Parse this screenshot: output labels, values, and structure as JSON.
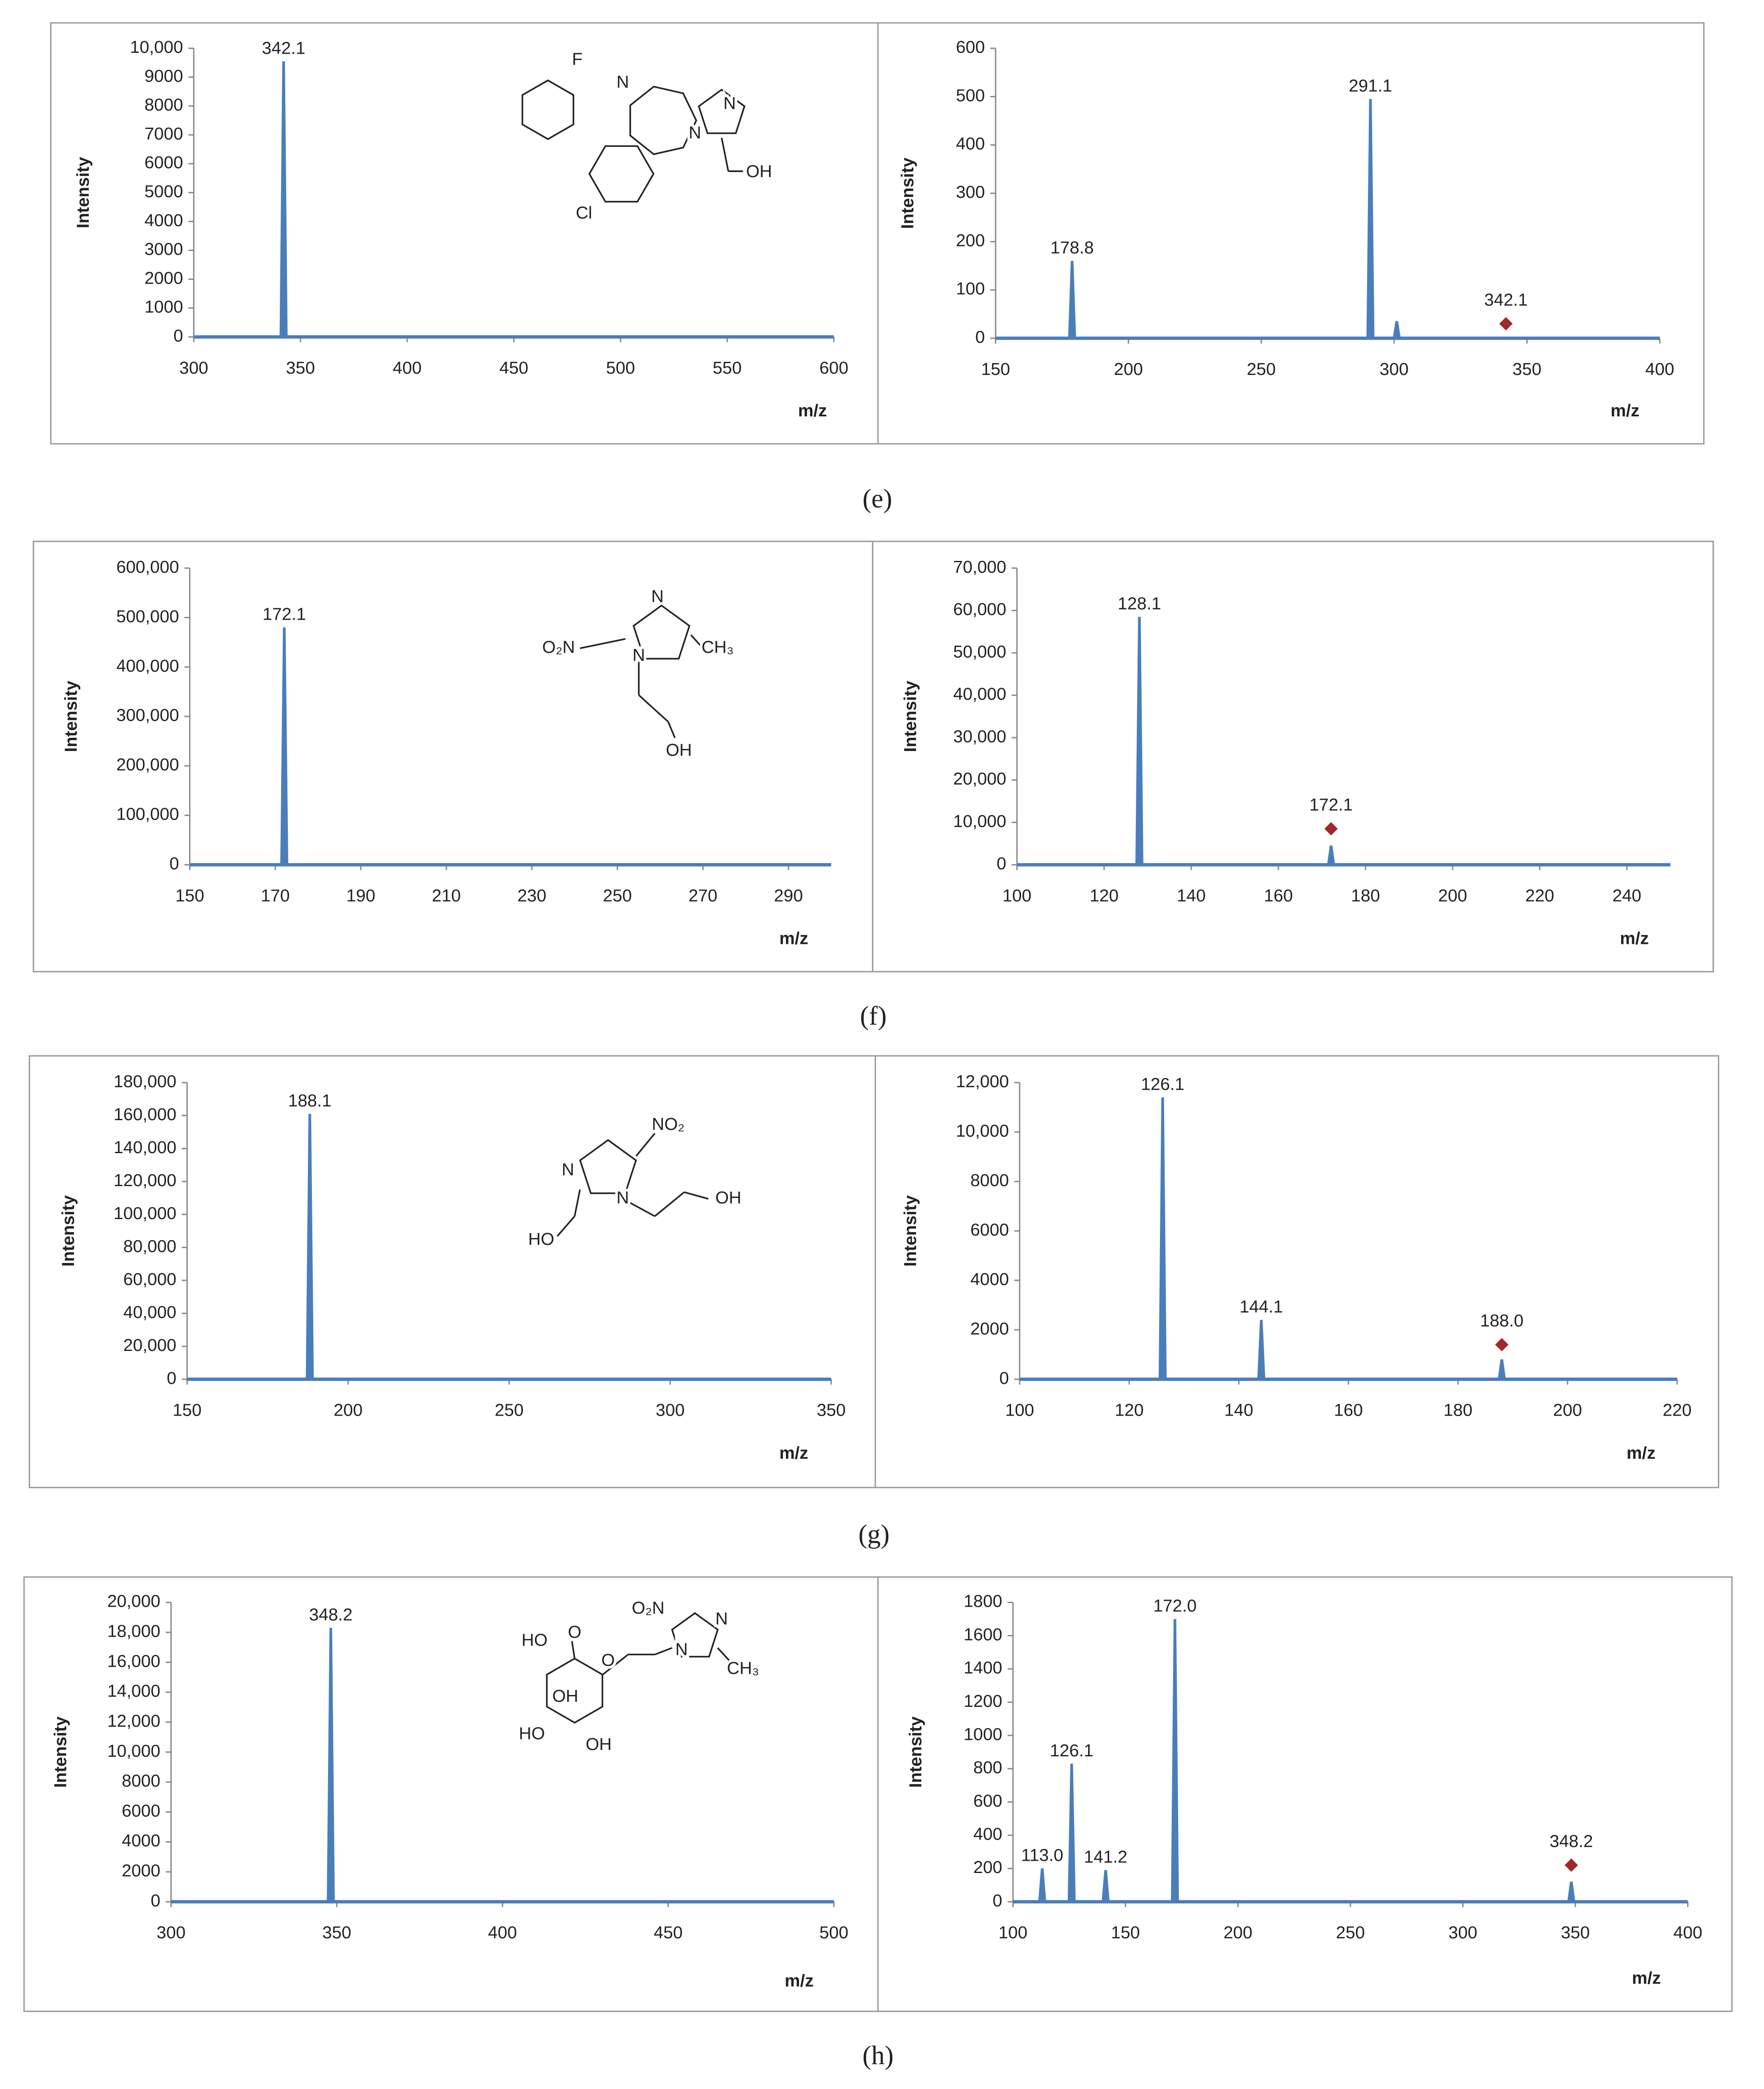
{
  "chart_data": [
    {
      "type": "spectrum",
      "x": [
        342.1
      ],
      "values": [
        9550
      ],
      "peak_labels": [
        "342.1"
      ],
      "color": "#4a7ebb",
      "xlim": [
        300,
        600
      ],
      "xticks": [
        300,
        350,
        400,
        450,
        500,
        550,
        600
      ],
      "ylim": [
        0,
        10000
      ],
      "yticks": [
        0,
        1000,
        2000,
        3000,
        4000,
        5000,
        6000,
        7000,
        8000,
        9000,
        {
          "value": 10000,
          "label": "10,000"
        }
      ],
      "xlabel": "m/z",
      "ylabel": "Intensity",
      "structure_labels": [
        "F",
        "N",
        "N",
        "N",
        "OH",
        "Cl"
      ]
    },
    {
      "type": "spectrum",
      "x": [
        178.8,
        291.1,
        301
      ],
      "values": [
        160,
        495,
        35
      ],
      "peak_labels": [
        "178.8",
        "291.1",
        null
      ],
      "color": "#4a7ebb",
      "markers": {
        "x": [
          342.1
        ],
        "values": [
          30
        ],
        "labels": [
          "342.1"
        ],
        "color": "#a0282d"
      },
      "xlim": [
        150,
        400
      ],
      "xticks": [
        150,
        200,
        250,
        300,
        350,
        400
      ],
      "ylim": [
        0,
        600
      ],
      "yticks": [
        0,
        100,
        200,
        300,
        400,
        500,
        600
      ],
      "xlabel": "m/z",
      "ylabel": "Intensity"
    },
    {
      "type": "spectrum",
      "x": [
        172.1
      ],
      "values": [
        480000
      ],
      "peak_labels": [
        "172.1"
      ],
      "color": "#4a7ebb",
      "xlim": [
        150,
        300
      ],
      "xticks": [
        150,
        170,
        190,
        210,
        230,
        250,
        270,
        290
      ],
      "ylim": [
        0,
        600000
      ],
      "yticks": [
        0,
        {
          "value": 100000,
          "label": "100,000"
        },
        {
          "value": 200000,
          "label": "200,000"
        },
        {
          "value": 300000,
          "label": "300,000"
        },
        {
          "value": 400000,
          "label": "400,000"
        },
        {
          "value": 500000,
          "label": "500,000"
        },
        {
          "value": 600000,
          "label": "600,000"
        }
      ],
      "xlabel": "m/z",
      "ylabel": "Intensity",
      "structure_labels": [
        "N",
        "O₂N",
        "N",
        "CH₃",
        "OH"
      ]
    },
    {
      "type": "spectrum",
      "x": [
        128.1,
        172.1
      ],
      "values": [
        58500,
        4500
      ],
      "peak_labels": [
        "128.1",
        null
      ],
      "color": "#4a7ebb",
      "markers": {
        "x": [
          172.1
        ],
        "values": [
          8500
        ],
        "labels": [
          "172.1"
        ],
        "color": "#a0282d"
      },
      "xlim": [
        100,
        250
      ],
      "xticks": [
        100,
        120,
        140,
        160,
        180,
        200,
        220,
        240
      ],
      "ylim": [
        0,
        70000
      ],
      "yticks": [
        0,
        {
          "value": 10000,
          "label": "10,000"
        },
        {
          "value": 20000,
          "label": "20,000"
        },
        {
          "value": 30000,
          "label": "30,000"
        },
        {
          "value": 40000,
          "label": "40,000"
        },
        {
          "value": 50000,
          "label": "50,000"
        },
        {
          "value": 60000,
          "label": "60,000"
        },
        {
          "value": 70000,
          "label": "70,000"
        }
      ],
      "xlabel": "m/z",
      "ylabel": "Intensity"
    },
    {
      "type": "spectrum",
      "x": [
        188.1
      ],
      "values": [
        161000
      ],
      "peak_labels": [
        "188.1"
      ],
      "color": "#4a7ebb",
      "xlim": [
        150,
        350
      ],
      "xticks": [
        150,
        200,
        250,
        300,
        350
      ],
      "ylim": [
        0,
        180000
      ],
      "yticks": [
        0,
        {
          "value": 20000,
          "label": "20,000"
        },
        {
          "value": 40000,
          "label": "40,000"
        },
        {
          "value": 60000,
          "label": "60,000"
        },
        {
          "value": 80000,
          "label": "80,000"
        },
        {
          "value": 100000,
          "label": "100,000"
        },
        {
          "value": 120000,
          "label": "120,000"
        },
        {
          "value": 140000,
          "label": "140,000"
        },
        {
          "value": 160000,
          "label": "160,000"
        },
        {
          "value": 180000,
          "label": "180,000"
        }
      ],
      "xlabel": "m/z",
      "ylabel": "Intensity",
      "structure_labels": [
        "NO₂",
        "N",
        "N",
        "OH",
        "HO"
      ]
    },
    {
      "type": "spectrum",
      "x": [
        126.1,
        144.1,
        188.0
      ],
      "values": [
        11400,
        2400,
        800
      ],
      "peak_labels": [
        "126.1",
        "144.1",
        null
      ],
      "color": "#4a7ebb",
      "markers": {
        "x": [
          188.0
        ],
        "values": [
          1400
        ],
        "labels": [
          "188.0"
        ],
        "color": "#a0282d"
      },
      "xlim": [
        100,
        220
      ],
      "xticks": [
        100,
        120,
        140,
        160,
        180,
        200,
        220
      ],
      "ylim": [
        0,
        12000
      ],
      "yticks": [
        0,
        2000,
        4000,
        6000,
        8000,
        {
          "value": 10000,
          "label": "10,000"
        },
        {
          "value": 12000,
          "label": "12,000"
        }
      ],
      "xlabel": "m/z",
      "ylabel": "Intensity"
    },
    {
      "type": "spectrum",
      "x": [
        348.2
      ],
      "values": [
        18300
      ],
      "peak_labels": [
        "348.2"
      ],
      "color": "#4a7ebb",
      "xlim": [
        300,
        500
      ],
      "xticks": [
        300,
        350,
        400,
        450,
        500
      ],
      "ylim": [
        0,
        20000
      ],
      "yticks": [
        0,
        2000,
        4000,
        6000,
        8000,
        {
          "value": 10000,
          "label": "10,000"
        },
        {
          "value": 12000,
          "label": "12,000"
        },
        {
          "value": 14000,
          "label": "14,000"
        },
        {
          "value": 16000,
          "label": "16,000"
        },
        {
          "value": 18000,
          "label": "18,000"
        },
        {
          "value": 20000,
          "label": "20,000"
        }
      ],
      "xlabel": "m/z",
      "ylabel": "Intensity",
      "structure_labels": [
        "O₂N",
        "N",
        "N",
        "CH₃",
        "HO",
        "O",
        "O",
        "OH",
        "HO",
        "OH"
      ]
    },
    {
      "type": "spectrum",
      "x": [
        113.0,
        126.1,
        141.2,
        172.0,
        348.2
      ],
      "values": [
        200,
        830,
        190,
        1700,
        120
      ],
      "peak_labels": [
        "113.0",
        "126.1",
        "141.2",
        "172.0",
        null
      ],
      "color": "#4a7ebb",
      "markers": {
        "x": [
          348.2
        ],
        "values": [
          220
        ],
        "labels": [
          "348.2"
        ],
        "color": "#a0282d"
      },
      "xlim": [
        100,
        400
      ],
      "xticks": [
        100,
        150,
        200,
        250,
        300,
        350,
        400
      ],
      "ylim": [
        0,
        1800
      ],
      "yticks": [
        0,
        200,
        400,
        600,
        800,
        1000,
        1200,
        1400,
        1600,
        1800
      ],
      "xlabel": "m/z",
      "ylabel": "Intensity"
    }
  ],
  "captions": [
    "(e)",
    "(f)",
    "(g)",
    "(h)"
  ]
}
